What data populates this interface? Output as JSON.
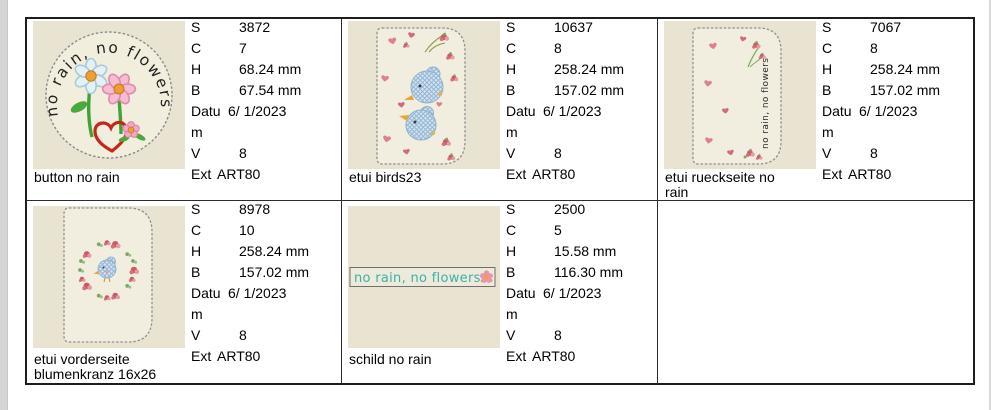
{
  "field_defs": [
    {
      "key": "s",
      "label": "S"
    },
    {
      "key": "c",
      "label": "C"
    },
    {
      "key": "h",
      "label": "H"
    },
    {
      "key": "b",
      "label": "B"
    },
    {
      "key": "datum",
      "label": "Datum"
    },
    {
      "key": "v",
      "label": "V"
    },
    {
      "key": "ext",
      "label": "Ext"
    }
  ],
  "cells": [
    {
      "label": "button no rain",
      "s": "3872",
      "c": "7",
      "h": "68.24 mm",
      "b": "67.54 mm",
      "datum": "6/ 1/2023",
      "v": "8",
      "ext": "ART80"
    },
    {
      "label": "etui birds23",
      "s": "10637",
      "c": "8",
      "h": "258.24 mm",
      "b": "157.02 mm",
      "datum": "6/ 1/2023",
      "v": "8",
      "ext": "ART80"
    },
    {
      "label": "etui rueckseite no rain",
      "s": "7067",
      "c": "8",
      "h": "258.24 mm",
      "b": "157.02 mm",
      "datum": "6/ 1/2023",
      "v": "8",
      "ext": "ART80"
    },
    {
      "label": "etui vorderseite blumenkranz 16x26",
      "s": "8978",
      "c": "10",
      "h": "258.24 mm",
      "b": "157.02 mm",
      "datum": "6/ 1/2023",
      "v": "8",
      "ext": "ART80"
    },
    {
      "label": "schild no rain",
      "s": "2500",
      "c": "5",
      "h": "15.58 mm",
      "b": "116.30 mm",
      "datum": "6/ 1/2023",
      "v": "8",
      "ext": "ART80"
    },
    null
  ],
  "artwork": {
    "motto": "no rain, no flowers"
  },
  "colors": {
    "thumb_background": "#e8e4d1",
    "fabric_light": "#f1eee0",
    "stitch_outline": "#909090",
    "motto_teal": "#3fafa7",
    "rose_red": "#c95b65",
    "rose_pink": "#e59aa6",
    "heart_pink": "#dd8191",
    "bird_blue": "#d3e2ee",
    "leaf_green": "#49a83e",
    "orange_center": "#eda02f",
    "table_border": "#1d1d1d"
  }
}
